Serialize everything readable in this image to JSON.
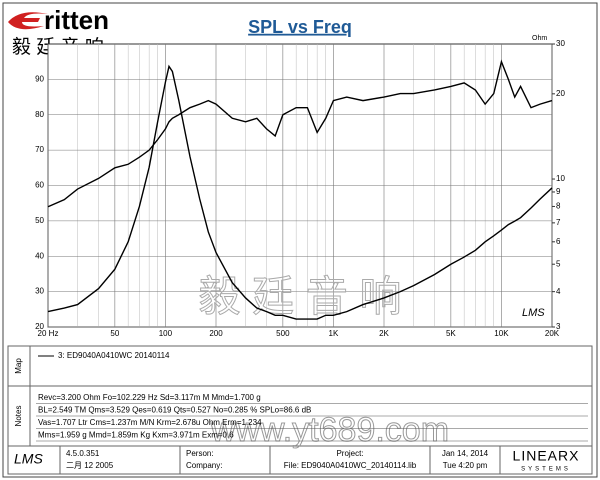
{
  "chart_data": {
    "type": "line",
    "title": "SPL vs Freq",
    "y2_label": "Ohm",
    "x": [
      20,
      25,
      30,
      40,
      50,
      60,
      70,
      80,
      90,
      100,
      105,
      110,
      120,
      140,
      160,
      180,
      200,
      250,
      300,
      350,
      400,
      450,
      500,
      600,
      700,
      800,
      900,
      1000,
      1200,
      1500,
      2000,
      2500,
      3000,
      4000,
      5000,
      6000,
      7000,
      8000,
      9000,
      10000,
      11000,
      12000,
      13000,
      15000,
      17000,
      20000
    ],
    "series": [
      {
        "color": "#000000",
        "values": [
          54,
          56,
          59,
          62,
          65,
          66,
          68,
          70,
          73,
          76,
          78,
          79,
          80,
          82,
          83,
          84,
          83,
          79,
          78,
          79,
          76,
          74,
          80,
          82,
          82,
          75,
          79,
          84,
          85,
          84,
          85,
          86,
          86,
          87,
          88,
          89,
          87,
          83,
          86,
          95,
          90,
          85,
          88,
          82,
          83,
          84
        ]
      },
      {
        "color": "#000000",
        "axis": "y2",
        "values": [
          3.4,
          3.5,
          3.6,
          4.1,
          4.8,
          6,
          8,
          11,
          16,
          22,
          25,
          24,
          19,
          12,
          8.5,
          6.5,
          5.5,
          4.3,
          3.8,
          3.5,
          3.4,
          3.3,
          3.3,
          3.2,
          3.2,
          3.2,
          3.3,
          3.3,
          3.4,
          3.6,
          3.8,
          4,
          4.2,
          4.6,
          5,
          5.3,
          5.6,
          6,
          6.3,
          6.6,
          6.9,
          7.1,
          7.3,
          7.9,
          8.5,
          9.3
        ]
      }
    ],
    "xlog": true,
    "xlim": [
      20,
      20000
    ],
    "xticks": [
      {
        "value": 20,
        "label": "20 Hz"
      },
      50,
      100,
      200,
      500,
      {
        "value": 1000,
        "label": "1K"
      },
      {
        "value": 2000,
        "label": "2K"
      },
      {
        "value": 5000,
        "label": "5K"
      },
      {
        "value": 10000,
        "label": "10K"
      },
      {
        "value": 20000,
        "label": "20K"
      }
    ],
    "x_minor_grid": [
      30,
      40,
      60,
      70,
      80,
      90,
      300,
      400,
      600,
      700,
      800,
      900,
      3000,
      4000,
      6000,
      7000,
      8000,
      9000
    ],
    "ylim": [
      20,
      100
    ],
    "yticks": [
      20,
      30,
      40,
      50,
      60,
      70,
      80,
      90
    ],
    "y2log": true,
    "y2lim": [
      3,
      30
    ],
    "y2ticks": [
      3,
      4,
      5,
      6,
      7,
      8,
      9,
      10,
      20,
      30
    ],
    "grid": true,
    "corner_mark": "LMS"
  },
  "header": {
    "brand": "ritten",
    "brand_cn": "毅 廷 音 响"
  },
  "watermark": {
    "cn": "毅 廷 音 响",
    "url": "www.yt689.com"
  },
  "map": {
    "label": "Map",
    "entry": "3: ED9040A0410WC    20140114"
  },
  "notes": {
    "label": "Notes",
    "lines": [
      "Revc=3.200 Ohm  Fo=102.229 Hz  Sd=3.117m M  Mmd=1.700 g",
      "BL=2.549 TM  Qms=3.529  Qes=0.619  Qts=0.527  No=0.285 %  SPLo=86.6 dB",
      "Vas=1.707 Ltr  Cms=1.237m M/N  Krm=2.678u Ohm  Erm=1.234",
      "Mms=1.959 g  Mmd=1.859m Kg  Kxm=3.971m  Exm=0.6"
    ]
  },
  "footer": {
    "logo": "LMS",
    "version": "4.5.0.351",
    "date_built": "二月 12 2005",
    "person": "Person:",
    "company": "Company:",
    "project": "Project:",
    "file": "File: ED9040A0410WC_20140114.lib",
    "date": "Jan 14, 2014",
    "time": "Tue  4:20 pm",
    "brand": "LINEARX",
    "brand_sub": "SYSTEMS"
  }
}
